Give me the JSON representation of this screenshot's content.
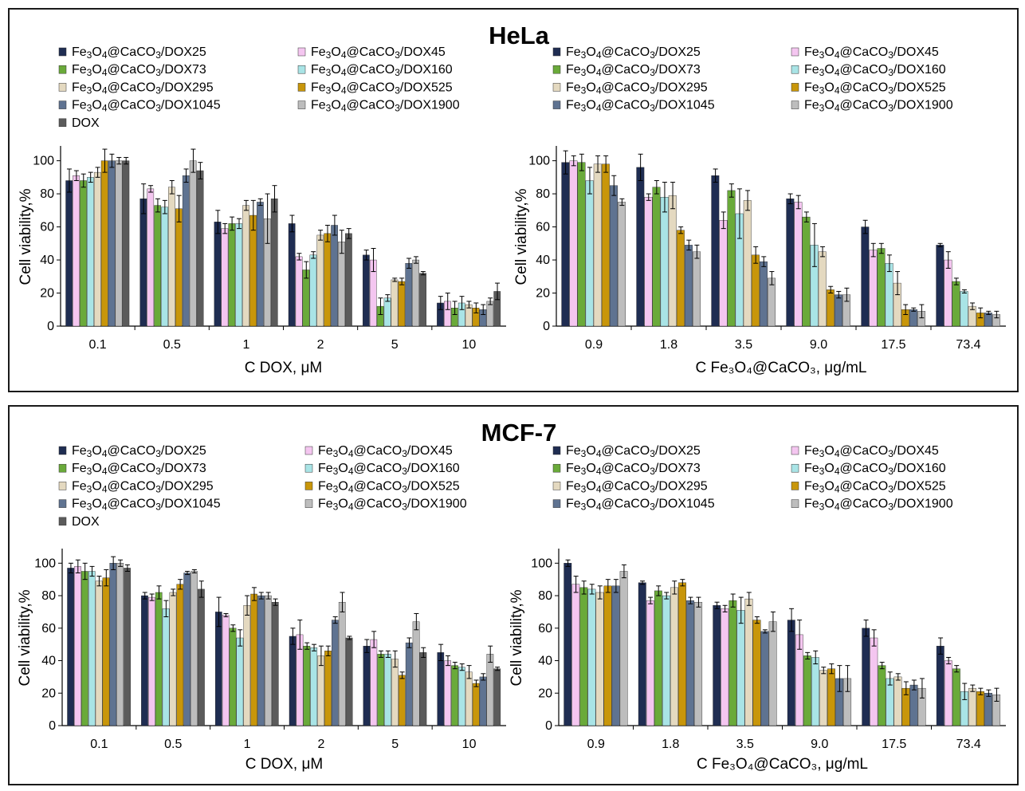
{
  "figure": {
    "panels": [
      {
        "title": "HeLa",
        "charts": [
          {
            "chart_data": {
              "type": "bar",
              "xlabel": "C DOX, μM",
              "ylabel": "Cell viability,%",
              "ylim": [
                0,
                100
              ],
              "yticks": [
                0,
                20,
                40,
                60,
                80,
                100
              ],
              "categories": [
                "0.1",
                "0.5",
                "1",
                "2",
                "5",
                "10"
              ],
              "series": [
                {
                  "name": "Fe3O4@CaCO3/DOX25",
                  "color": "#1f2d52",
                  "values": [
                    88,
                    77,
                    63,
                    62,
                    43,
                    14
                  ],
                  "errors": [
                    7,
                    9,
                    7,
                    5,
                    3,
                    4
                  ]
                },
                {
                  "name": "Fe3O4@CaCO3/DOX45",
                  "color": "#f4c6f0",
                  "values": [
                    91,
                    83,
                    59,
                    42,
                    40,
                    15
                  ],
                  "errors": [
                    3,
                    2,
                    3,
                    2,
                    7,
                    5
                  ]
                },
                {
                  "name": "Fe3O4@CaCO3/DOX73",
                  "color": "#6aaa3a",
                  "values": [
                    88,
                    73,
                    62,
                    34,
                    12,
                    11
                  ],
                  "errors": [
                    4,
                    4,
                    4,
                    5,
                    5,
                    4
                  ]
                },
                {
                  "name": "Fe3O4@CaCO3/DOX160",
                  "color": "#a9e4e6",
                  "values": [
                    90,
                    72,
                    62,
                    43,
                    17,
                    14
                  ],
                  "errors": [
                    3,
                    4,
                    3,
                    2,
                    2,
                    4
                  ]
                },
                {
                  "name": "Fe3O4@CaCO3/DOX295",
                  "color": "#e4d9c0",
                  "values": [
                    93,
                    84,
                    73,
                    55,
                    28,
                    13
                  ],
                  "errors": [
                    3,
                    4,
                    3,
                    3,
                    1,
                    2
                  ]
                },
                {
                  "name": "Fe3O4@CaCO3/DOX525",
                  "color": "#c8960a",
                  "values": [
                    100,
                    71,
                    67,
                    56,
                    27,
                    11
                  ],
                  "errors": [
                    7,
                    8,
                    9,
                    5,
                    2,
                    3
                  ]
                },
                {
                  "name": "Fe3O4@CaCO3/DOX1045",
                  "color": "#5f7391",
                  "values": [
                    100,
                    91,
                    75,
                    61,
                    38,
                    10
                  ],
                  "errors": [
                    4,
                    4,
                    2,
                    6,
                    3,
                    3
                  ]
                },
                {
                  "name": "Fe3O4@CaCO3/DOX1900",
                  "color": "#bdbdbd",
                  "values": [
                    100,
                    100,
                    65,
                    51,
                    40,
                    15
                  ],
                  "errors": [
                    2,
                    7,
                    15,
                    7,
                    2,
                    2
                  ]
                },
                {
                  "name": "DOX",
                  "color": "#5b5b5b",
                  "values": [
                    100,
                    94,
                    77,
                    56,
                    32,
                    21
                  ],
                  "errors": [
                    2,
                    5,
                    8,
                    3,
                    1,
                    5
                  ]
                }
              ]
            }
          },
          {
            "chart_data": {
              "type": "bar",
              "xlabel": "C Fe₃O₄@CaCO₃, μg/mL",
              "ylabel": "Cell viability,%",
              "ylim": [
                0,
                100
              ],
              "yticks": [
                0,
                20,
                40,
                60,
                80,
                100
              ],
              "categories": [
                "0.9",
                "1.8",
                "3.5",
                "9.0",
                "17.5",
                "73.4"
              ],
              "series": [
                {
                  "name": "Fe3O4@CaCO3/DOX25",
                  "color": "#1f2d52",
                  "values": [
                    99,
                    96,
                    91,
                    77,
                    60,
                    49
                  ],
                  "errors": [
                    7,
                    8,
                    4,
                    3,
                    4,
                    1
                  ]
                },
                {
                  "name": "Fe3O4@CaCO3/DOX45",
                  "color": "#f4c6f0",
                  "values": [
                    100,
                    78,
                    64,
                    75,
                    46,
                    40
                  ],
                  "errors": [
                    3,
                    2,
                    5,
                    4,
                    4,
                    5
                  ]
                },
                {
                  "name": "Fe3O4@CaCO3/DOX73",
                  "color": "#6aaa3a",
                  "values": [
                    99,
                    84,
                    82,
                    66,
                    47,
                    27
                  ],
                  "errors": [
                    5,
                    4,
                    4,
                    3,
                    3,
                    2
                  ]
                },
                {
                  "name": "Fe3O4@CaCO3/DOX160",
                  "color": "#a9e4e6",
                  "values": [
                    88,
                    78,
                    68,
                    49,
                    38,
                    21
                  ],
                  "errors": [
                    8,
                    9,
                    15,
                    13,
                    5,
                    1
                  ]
                },
                {
                  "name": "Fe3O4@CaCO3/DOX295",
                  "color": "#e4d9c0",
                  "values": [
                    98,
                    79,
                    76,
                    45,
                    26,
                    12
                  ],
                  "errors": [
                    5,
                    8,
                    6,
                    3,
                    7,
                    2
                  ]
                },
                {
                  "name": "Fe3O4@CaCO3/DOX525",
                  "color": "#c8960a",
                  "values": [
                    98,
                    58,
                    43,
                    22,
                    10,
                    8
                  ],
                  "errors": [
                    5,
                    2,
                    5,
                    2,
                    3,
                    3
                  ]
                },
                {
                  "name": "Fe3O4@CaCO3/DOX1045",
                  "color": "#5f7391",
                  "values": [
                    85,
                    49,
                    39,
                    19,
                    10,
                    8
                  ],
                  "errors": [
                    6,
                    3,
                    3,
                    2,
                    1,
                    1
                  ]
                },
                {
                  "name": "Fe3O4@CaCO3/DOX1900",
                  "color": "#bdbdbd",
                  "values": [
                    75,
                    45,
                    29,
                    19,
                    9,
                    7
                  ],
                  "errors": [
                    2,
                    4,
                    4,
                    4,
                    4,
                    2
                  ]
                }
              ]
            }
          }
        ]
      },
      {
        "title": "MCF-7",
        "charts": [
          {
            "chart_data": {
              "type": "bar",
              "xlabel": "C DOX, μM",
              "ylabel": "Cell viability,%",
              "ylim": [
                0,
                100
              ],
              "yticks": [
                0,
                20,
                40,
                60,
                80,
                100
              ],
              "categories": [
                "0.1",
                "0.5",
                "1",
                "2",
                "5",
                "10"
              ],
              "series": [
                {
                  "name": "Fe3O4@CaCO3/DOX25",
                  "color": "#1f2d52",
                  "values": [
                    97,
                    80,
                    70,
                    55,
                    49,
                    45
                  ],
                  "errors": [
                    3,
                    2,
                    9,
                    5,
                    4,
                    5
                  ]
                },
                {
                  "name": "Fe3O4@CaCO3/DOX45",
                  "color": "#f4c6f0",
                  "values": [
                    98,
                    79,
                    68,
                    56,
                    53,
                    40
                  ],
                  "errors": [
                    4,
                    2,
                    1,
                    9,
                    5,
                    3
                  ]
                },
                {
                  "name": "Fe3O4@CaCO3/DOX73",
                  "color": "#6aaa3a",
                  "values": [
                    95,
                    82,
                    60,
                    49,
                    44,
                    37
                  ],
                  "errors": [
                    5,
                    4,
                    2,
                    2,
                    2,
                    2
                  ]
                },
                {
                  "name": "Fe3O4@CaCO3/DOX160",
                  "color": "#a9e4e6",
                  "values": [
                    95,
                    72,
                    54,
                    48,
                    44,
                    36
                  ],
                  "errors": [
                    3,
                    5,
                    5,
                    2,
                    2,
                    2
                  ]
                },
                {
                  "name": "Fe3O4@CaCO3/DOX295",
                  "color": "#e4d9c0",
                  "values": [
                    89,
                    82,
                    74,
                    43,
                    41,
                    33
                  ],
                  "errors": [
                    3,
                    2,
                    6,
                    6,
                    5,
                    4
                  ]
                },
                {
                  "name": "Fe3O4@CaCO3/DOX525",
                  "color": "#c8960a",
                  "values": [
                    91,
                    87,
                    81,
                    46,
                    31,
                    26
                  ],
                  "errors": [
                    5,
                    3,
                    4,
                    3,
                    2,
                    2
                  ]
                },
                {
                  "name": "Fe3O4@CaCO3/DOX1045",
                  "color": "#5f7391",
                  "values": [
                    100,
                    94,
                    80,
                    65,
                    51,
                    30
                  ],
                  "errors": [
                    4,
                    1,
                    2,
                    2,
                    3,
                    2
                  ]
                },
                {
                  "name": "Fe3O4@CaCO3/DOX1900",
                  "color": "#bdbdbd",
                  "values": [
                    100,
                    95,
                    80,
                    76,
                    64,
                    44
                  ],
                  "errors": [
                    2,
                    1,
                    2,
                    6,
                    5,
                    5
                  ]
                },
                {
                  "name": "DOX",
                  "color": "#5b5b5b",
                  "values": [
                    97,
                    84,
                    76,
                    54,
                    45,
                    35
                  ],
                  "errors": [
                    2,
                    5,
                    2,
                    1,
                    3,
                    1
                  ]
                }
              ]
            }
          },
          {
            "chart_data": {
              "type": "bar",
              "xlabel": "C Fe₃O₄@CaCO₃, μg/mL",
              "ylabel": "Cell viability,%",
              "ylim": [
                0,
                100
              ],
              "yticks": [
                0,
                20,
                40,
                60,
                80,
                100
              ],
              "categories": [
                "0.9",
                "1.8",
                "3.5",
                "9.0",
                "17.5",
                "73.4"
              ],
              "series": [
                {
                  "name": "Fe3O4@CaCO3/DOX25",
                  "color": "#1f2d52",
                  "values": [
                    100,
                    88,
                    74,
                    65,
                    60,
                    49
                  ],
                  "errors": [
                    2,
                    1,
                    2,
                    7,
                    5,
                    5
                  ]
                },
                {
                  "name": "Fe3O4@CaCO3/DOX45",
                  "color": "#f4c6f0",
                  "values": [
                    87,
                    77,
                    72,
                    56,
                    54,
                    40
                  ],
                  "errors": [
                    5,
                    2,
                    2,
                    9,
                    5,
                    2
                  ]
                },
                {
                  "name": "Fe3O4@CaCO3/DOX73",
                  "color": "#6aaa3a",
                  "values": [
                    85,
                    83,
                    77,
                    43,
                    37,
                    35
                  ],
                  "errors": [
                    4,
                    3,
                    4,
                    2,
                    2,
                    2
                  ]
                },
                {
                  "name": "Fe3O4@CaCO3/DOX160",
                  "color": "#a9e4e6",
                  "values": [
                    84,
                    80,
                    71,
                    42,
                    29,
                    21
                  ],
                  "errors": [
                    3,
                    2,
                    8,
                    4,
                    4,
                    5
                  ]
                },
                {
                  "name": "Fe3O4@CaCO3/DOX295",
                  "color": "#e4d9c0",
                  "values": [
                    82,
                    85,
                    78,
                    34,
                    30,
                    23
                  ],
                  "errors": [
                    4,
                    4,
                    4,
                    2,
                    2,
                    2
                  ]
                },
                {
                  "name": "Fe3O4@CaCO3/DOX525",
                  "color": "#c8960a",
                  "values": [
                    86,
                    88,
                    65,
                    35,
                    23,
                    21
                  ],
                  "errors": [
                    4,
                    2,
                    2,
                    3,
                    4,
                    2
                  ]
                },
                {
                  "name": "Fe3O4@CaCO3/DOX1045",
                  "color": "#5f7391",
                  "values": [
                    86,
                    77,
                    58,
                    29,
                    25,
                    20
                  ],
                  "errors": [
                    4,
                    2,
                    1,
                    8,
                    3,
                    2
                  ]
                },
                {
                  "name": "Fe3O4@CaCO3/DOX1900",
                  "color": "#bdbdbd",
                  "values": [
                    95,
                    76,
                    64,
                    29,
                    23,
                    19
                  ],
                  "errors": [
                    4,
                    3,
                    6,
                    8,
                    6,
                    4
                  ]
                }
              ]
            }
          }
        ]
      }
    ]
  }
}
